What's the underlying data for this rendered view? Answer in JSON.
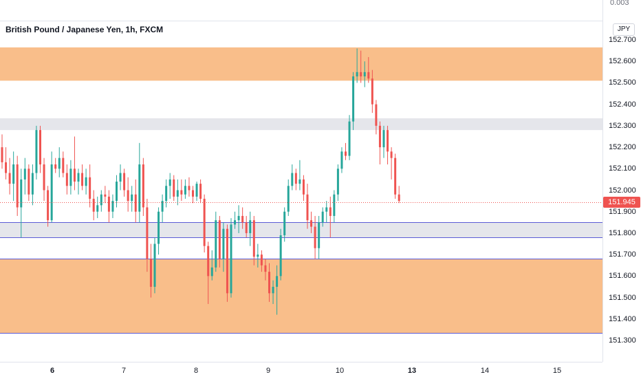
{
  "chart_data": {
    "type": "candlestick",
    "title": "British Pound / Japanese Yen, 1h, FXCM",
    "currency": "JPY",
    "top_axis_value": "0.003",
    "last_price": "151.945",
    "last_price_value": 151.945,
    "ylim": [
      151.235,
      152.78
    ],
    "y_ticks": [
      "152.700",
      "152.600",
      "152.500",
      "152.400",
      "152.300",
      "152.200",
      "152.100",
      "152.000",
      "151.900",
      "151.800",
      "151.700",
      "151.600",
      "151.500",
      "151.400",
      "151.300"
    ],
    "x_labels": [
      {
        "label": "6",
        "bold": true
      },
      {
        "label": "7",
        "bold": false
      },
      {
        "label": "8",
        "bold": false
      },
      {
        "label": "9",
        "bold": false
      },
      {
        "label": "10",
        "bold": false
      },
      {
        "label": "13",
        "bold": true
      },
      {
        "label": "14",
        "bold": false
      },
      {
        "label": "15",
        "bold": false
      }
    ],
    "zones": [
      {
        "from": 152.665,
        "to": 152.51,
        "color": "#f9be8a"
      },
      {
        "from": 152.335,
        "to": 152.28,
        "color": "#e5e6eb"
      },
      {
        "from": 151.85,
        "to": 151.78,
        "color": "#e5e6eb"
      },
      {
        "from": 151.68,
        "to": 151.335,
        "color": "#f9be8a"
      }
    ],
    "lines": [
      {
        "price": 151.85,
        "color": "#5b5bd6"
      },
      {
        "price": 151.78,
        "color": "#5b5bd6"
      },
      {
        "price": 151.68,
        "color": "#5b5bd6"
      },
      {
        "price": 151.335,
        "color": "#5b5bd6"
      }
    ],
    "up_color": "#26a69a",
    "down_color": "#ef5350",
    "candles": [
      [
        152.2,
        152.26,
        152.1,
        152.13
      ],
      [
        152.13,
        152.2,
        152.05,
        152.08
      ],
      [
        152.08,
        152.15,
        151.98,
        152.03
      ],
      [
        152.03,
        152.18,
        151.95,
        152.12
      ],
      [
        152.12,
        152.16,
        151.88,
        151.92
      ],
      [
        151.92,
        152.1,
        151.78,
        152.05
      ],
      [
        152.05,
        152.15,
        151.98,
        152.1
      ],
      [
        152.1,
        152.12,
        151.95,
        151.98
      ],
      [
        151.98,
        152.12,
        151.93,
        152.08
      ],
      [
        152.08,
        152.3,
        152.05,
        152.28
      ],
      [
        152.28,
        152.3,
        152.08,
        152.12
      ],
      [
        152.12,
        152.15,
        151.95,
        152.0
      ],
      [
        152.0,
        152.02,
        151.83,
        151.86
      ],
      [
        151.86,
        152.18,
        151.85,
        152.12
      ],
      [
        152.12,
        152.15,
        152.08,
        152.1
      ],
      [
        152.1,
        152.2,
        152.06,
        152.15
      ],
      [
        152.15,
        152.18,
        152.06,
        152.08
      ],
      [
        152.08,
        152.12,
        151.98,
        152.02
      ],
      [
        152.02,
        152.14,
        151.98,
        152.1
      ],
      [
        152.1,
        152.25,
        152.0,
        152.04
      ],
      [
        152.04,
        152.1,
        151.98,
        152.08
      ],
      [
        152.08,
        152.12,
        152.0,
        152.02
      ],
      [
        152.02,
        152.1,
        151.98,
        152.06
      ],
      [
        152.06,
        152.12,
        151.92,
        151.96
      ],
      [
        151.96,
        152.0,
        151.86,
        151.9
      ],
      [
        151.9,
        151.97,
        151.87,
        151.93
      ],
      [
        151.93,
        152.0,
        151.9,
        151.98
      ],
      [
        151.98,
        152.02,
        151.94,
        151.97
      ],
      [
        151.97,
        152.0,
        151.85,
        151.9
      ],
      [
        151.9,
        151.98,
        151.87,
        151.95
      ],
      [
        151.95,
        152.07,
        151.92,
        152.04
      ],
      [
        152.04,
        152.12,
        152.0,
        152.08
      ],
      [
        152.08,
        152.1,
        151.97,
        152.0
      ],
      [
        152.0,
        152.06,
        151.9,
        151.95
      ],
      [
        151.95,
        152.02,
        151.9,
        151.98
      ],
      [
        151.98,
        152.05,
        151.85,
        151.9
      ],
      [
        151.9,
        152.22,
        151.85,
        152.12
      ],
      [
        152.12,
        152.15,
        151.88,
        151.92
      ],
      [
        151.92,
        151.96,
        151.62,
        151.68
      ],
      [
        151.68,
        151.75,
        151.5,
        151.55
      ],
      [
        151.55,
        151.78,
        151.52,
        151.75
      ],
      [
        151.75,
        151.92,
        151.7,
        151.9
      ],
      [
        151.9,
        151.98,
        151.85,
        151.95
      ],
      [
        151.95,
        152.05,
        151.92,
        152.02
      ],
      [
        152.02,
        152.08,
        151.96,
        152.05
      ],
      [
        152.05,
        152.07,
        151.95,
        151.97
      ],
      [
        151.97,
        152.05,
        151.93,
        152.0
      ],
      [
        152.0,
        152.05,
        151.95,
        151.98
      ],
      [
        151.98,
        152.05,
        151.96,
        152.02
      ],
      [
        152.02,
        152.06,
        151.97,
        152.0
      ],
      [
        152.0,
        152.02,
        151.94,
        151.97
      ],
      [
        151.97,
        152.04,
        151.95,
        152.03
      ],
      [
        152.03,
        152.05,
        151.94,
        151.96
      ],
      [
        151.96,
        151.98,
        151.71,
        151.74
      ],
      [
        151.74,
        151.76,
        151.47,
        151.6
      ],
      [
        151.6,
        151.72,
        151.58,
        151.64
      ],
      [
        151.64,
        151.9,
        151.62,
        151.86
      ],
      [
        151.86,
        151.88,
        151.64,
        151.68
      ],
      [
        151.68,
        151.85,
        151.62,
        151.82
      ],
      [
        151.82,
        151.84,
        151.48,
        151.52
      ],
      [
        151.52,
        151.87,
        151.5,
        151.84
      ],
      [
        151.84,
        151.9,
        151.82,
        151.86
      ],
      [
        151.86,
        151.93,
        151.8,
        151.88
      ],
      [
        151.88,
        151.92,
        151.82,
        151.85
      ],
      [
        151.85,
        151.88,
        151.78,
        151.8
      ],
      [
        151.8,
        151.9,
        151.74,
        151.86
      ],
      [
        151.86,
        151.88,
        151.65,
        151.69
      ],
      [
        151.69,
        151.75,
        151.64,
        151.7
      ],
      [
        151.7,
        151.72,
        151.62,
        151.65
      ],
      [
        151.65,
        151.68,
        151.58,
        151.62
      ],
      [
        151.62,
        151.66,
        151.48,
        151.52
      ],
      [
        151.52,
        151.58,
        151.47,
        151.55
      ],
      [
        151.55,
        151.65,
        151.42,
        151.6
      ],
      [
        151.6,
        151.82,
        151.58,
        151.79
      ],
      [
        151.79,
        151.92,
        151.76,
        151.9
      ],
      [
        151.9,
        152.05,
        151.88,
        152.02
      ],
      [
        152.02,
        152.12,
        152.0,
        152.08
      ],
      [
        152.08,
        152.1,
        152.0,
        152.03
      ],
      [
        152.03,
        152.14,
        152.0,
        152.05
      ],
      [
        152.05,
        152.07,
        151.95,
        151.98
      ],
      [
        151.98,
        152.03,
        151.82,
        151.86
      ],
      [
        151.86,
        151.9,
        151.8,
        151.83
      ],
      [
        151.83,
        151.88,
        151.68,
        151.73
      ],
      [
        151.73,
        151.88,
        151.68,
        151.85
      ],
      [
        151.85,
        151.92,
        151.83,
        151.9
      ],
      [
        151.9,
        151.95,
        151.85,
        151.92
      ],
      [
        151.92,
        151.97,
        151.78,
        151.88
      ],
      [
        151.88,
        152.0,
        151.85,
        151.98
      ],
      [
        151.98,
        152.12,
        151.95,
        152.1
      ],
      [
        152.1,
        152.2,
        152.08,
        152.18
      ],
      [
        152.18,
        152.22,
        152.14,
        152.16
      ],
      [
        152.16,
        152.35,
        152.14,
        152.32
      ],
      [
        152.32,
        152.55,
        152.28,
        152.53
      ],
      [
        152.53,
        152.66,
        152.5,
        152.55
      ],
      [
        152.55,
        152.65,
        152.5,
        152.53
      ],
      [
        152.53,
        152.6,
        152.48,
        152.55
      ],
      [
        152.55,
        152.62,
        152.5,
        152.52
      ],
      [
        152.52,
        152.56,
        152.36,
        152.4
      ],
      [
        152.4,
        152.42,
        152.26,
        152.3
      ],
      [
        152.3,
        152.32,
        152.12,
        152.2
      ],
      [
        152.2,
        152.3,
        152.15,
        152.28
      ],
      [
        152.28,
        152.3,
        152.12,
        152.18
      ],
      [
        152.18,
        152.2,
        152.05,
        152.15
      ],
      [
        152.15,
        152.17,
        151.96,
        151.98
      ],
      [
        151.98,
        152.02,
        151.94,
        151.95
      ]
    ]
  }
}
